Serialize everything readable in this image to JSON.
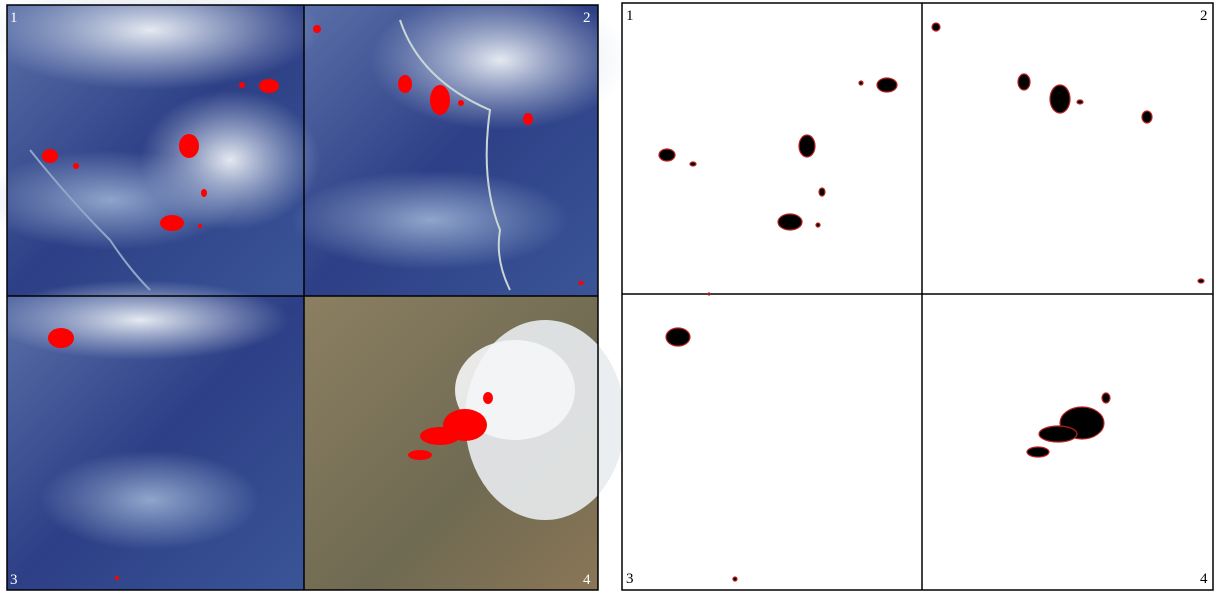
{
  "image_panels": [
    "1",
    "2",
    "3",
    "4"
  ],
  "mask_panels": [
    "1",
    "2",
    "3",
    "4"
  ]
}
